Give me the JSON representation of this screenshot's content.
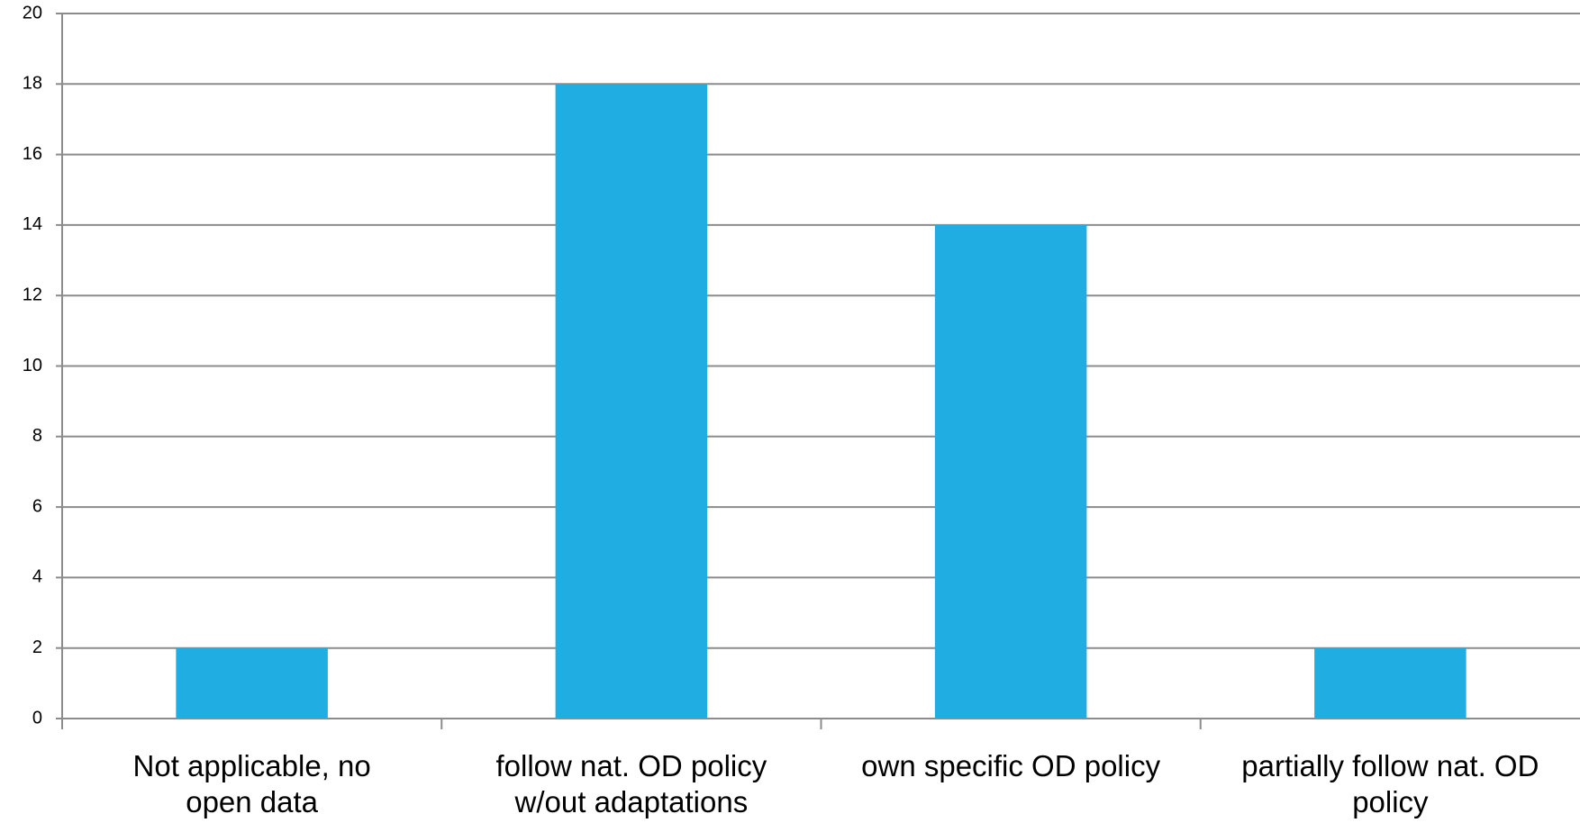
{
  "chart_data": {
    "type": "bar",
    "categories": [
      [
        "Not applicable, no",
        "open data"
      ],
      [
        "follow nat. OD policy",
        "w/out adaptations"
      ],
      [
        "own specific OD policy"
      ],
      [
        "partially follow nat. OD",
        "policy"
      ]
    ],
    "values": [
      2,
      18,
      14,
      2
    ],
    "title": "",
    "xlabel": "",
    "ylabel": "",
    "ylim": [
      0,
      20
    ],
    "yticks": [
      0,
      2,
      4,
      6,
      8,
      10,
      12,
      14,
      16,
      18,
      20
    ],
    "grid": true,
    "legend": "none",
    "bar_color": "#1FADE2"
  }
}
